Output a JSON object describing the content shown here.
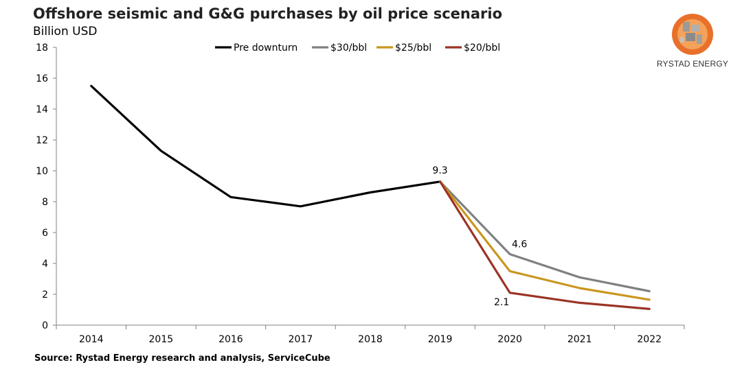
{
  "header": {
    "title": "Offshore seismic and G&G purchases by oil price scenario",
    "subtitle": "Billion USD"
  },
  "footer": {
    "source": "Source: Rystad Energy research and analysis, ServiceCube"
  },
  "logo": {
    "text": "RYSTAD ENERGY",
    "colors": [
      "#e8702a",
      "#f4a25a",
      "#9a9a9a"
    ]
  },
  "chart_data": {
    "type": "line",
    "title": "Offshore seismic and G&G purchases by oil price scenario",
    "ylabel": "Billion USD",
    "xlabel": "",
    "categories": [
      "2014",
      "2015",
      "2016",
      "2017",
      "2018",
      "2019",
      "2020",
      "2021",
      "2022"
    ],
    "ylim": [
      0,
      18
    ],
    "yticks": [
      0,
      2,
      4,
      6,
      8,
      10,
      12,
      14,
      16,
      18
    ],
    "grid": false,
    "legend": "top",
    "series": [
      {
        "name": "Pre downturn",
        "color": "#000000",
        "values": [
          15.5,
          11.3,
          8.3,
          7.7,
          8.6,
          9.3,
          null,
          null,
          null
        ]
      },
      {
        "name": "$30/bbl",
        "color": "#808080",
        "values": [
          null,
          null,
          null,
          null,
          null,
          9.3,
          4.6,
          3.1,
          2.2
        ]
      },
      {
        "name": "$25/bbl",
        "color": "#c9961e",
        "values": [
          null,
          null,
          null,
          null,
          null,
          9.3,
          3.5,
          2.4,
          1.65
        ]
      },
      {
        "name": "$20/bbl",
        "color": "#9b3324",
        "values": [
          null,
          null,
          null,
          null,
          null,
          9.3,
          2.1,
          1.45,
          1.05
        ]
      }
    ],
    "annotations": [
      {
        "text": "9.3",
        "series": 0,
        "index": 5
      },
      {
        "text": "4.6",
        "series": 1,
        "index": 6
      },
      {
        "text": "2.1",
        "series": 3,
        "index": 6
      }
    ]
  }
}
